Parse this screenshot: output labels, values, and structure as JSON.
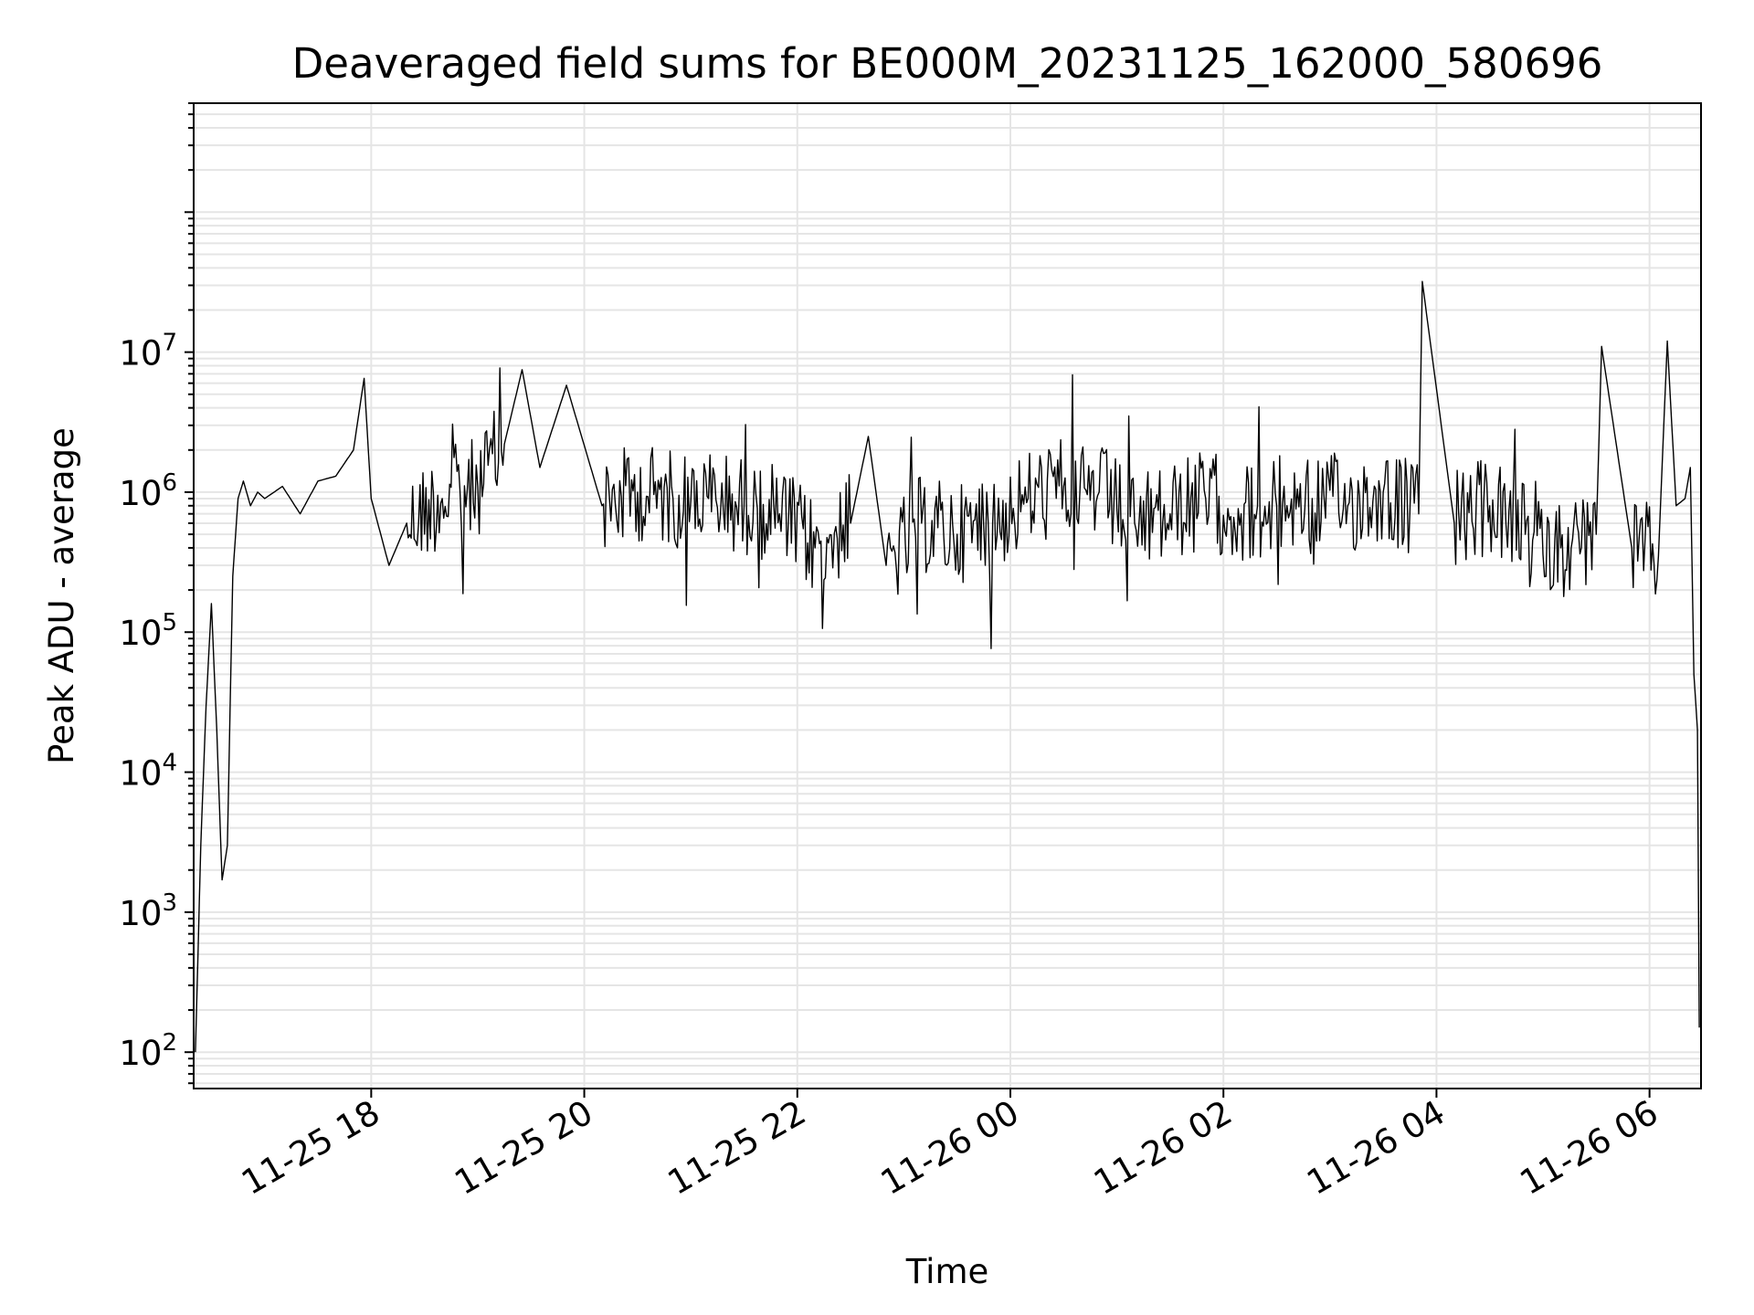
{
  "chart_data": {
    "type": "line",
    "title": "Deaveraged field sums for BE000M_20231125_162000_580696",
    "xlabel": "Time",
    "ylabel": "Peak ADU - average",
    "y_scale": "log",
    "ylim": [
      55,
      600000000
    ],
    "xlim": [
      "2023-11-25 16:20",
      "2023-11-26 06:29"
    ],
    "x_tick_labels": [
      "11-25 18",
      "11-25 20",
      "11-25 22",
      "11-26 00",
      "11-26 02",
      "11-26 04",
      "11-26 06"
    ],
    "x_tick_times": [
      "2023-11-25 18:00",
      "2023-11-25 20:00",
      "2023-11-25 22:00",
      "2023-11-26 00:00",
      "2023-11-26 02:00",
      "2023-11-26 04:00",
      "2023-11-26 06:00"
    ],
    "y_ticks": [
      {
        "value": 100,
        "base": "10",
        "exp": "2"
      },
      {
        "value": 1000,
        "base": "10",
        "exp": "3"
      },
      {
        "value": 10000,
        "base": "10",
        "exp": "4"
      },
      {
        "value": 100000,
        "base": "10",
        "exp": "5"
      },
      {
        "value": 1000000,
        "base": "10",
        "exp": "6"
      },
      {
        "value": 10000000,
        "base": "10",
        "exp": "7"
      }
    ],
    "grid": true,
    "legend": "none",
    "line_color": "#000000",
    "grid_color": "#e5e5e5",
    "series": [
      {
        "x": [
          "2023-11-25 16:21",
          "2023-11-25 16:24",
          "2023-11-25 16:27",
          "2023-11-25 16:30",
          "2023-11-25 16:33",
          "2023-11-25 16:36",
          "2023-11-25 16:39",
          "2023-11-25 16:42",
          "2023-11-25 16:45",
          "2023-11-25 16:48",
          "2023-11-25 16:52",
          "2023-11-25 16:56",
          "2023-11-25 17:00",
          "2023-11-25 17:10",
          "2023-11-25 17:20",
          "2023-11-25 17:30",
          "2023-11-25 17:40",
          "2023-11-25 17:50",
          "2023-11-25 17:56",
          "2023-11-25 18:00",
          "2023-11-25 18:10",
          "2023-11-25 18:20",
          "2023-11-25 18:40",
          "2023-11-25 19:00",
          "2023-11-25 19:15",
          "2023-11-25 19:25",
          "2023-11-25 19:35",
          "2023-11-25 19:50",
          "2023-11-25 20:10",
          "2023-11-25 20:30",
          "2023-11-25 20:50",
          "2023-11-25 21:10",
          "2023-11-25 21:30",
          "2023-11-25 21:50",
          "2023-11-25 22:10",
          "2023-11-25 22:30",
          "2023-11-25 22:40",
          "2023-11-25 22:50",
          "2023-11-25 23:10",
          "2023-11-25 23:30",
          "2023-11-25 23:50",
          "2023-11-26 00:10",
          "2023-11-26 00:30",
          "2023-11-26 00:50",
          "2023-11-26 01:10",
          "2023-11-26 01:30",
          "2023-11-26 01:50",
          "2023-11-26 02:10",
          "2023-11-26 02:30",
          "2023-11-26 02:50",
          "2023-11-26 03:10",
          "2023-11-26 03:30",
          "2023-11-26 03:50",
          "2023-11-26 03:52",
          "2023-11-26 04:10",
          "2023-11-26 04:30",
          "2023-11-26 04:50",
          "2023-11-26 05:10",
          "2023-11-26 05:30",
          "2023-11-26 05:33",
          "2023-11-26 05:50",
          "2023-11-26 06:05",
          "2023-11-26 06:10",
          "2023-11-26 06:15",
          "2023-11-26 06:20",
          "2023-11-26 06:23",
          "2023-11-26 06:25",
          "2023-11-26 06:27",
          "2023-11-26 06:28"
        ],
        "y": [
          100,
          3000,
          30000,
          160000,
          20000,
          1700,
          3000,
          250000,
          900000,
          1200000,
          800000,
          1000000,
          900000,
          1100000,
          700000,
          1200000,
          1300000,
          2000000,
          6500000,
          900000,
          300000,
          600000,
          900000,
          1100000,
          2200000,
          7500000,
          1500000,
          5800000,
          800000,
          1000000,
          900000,
          900000,
          800000,
          700000,
          400000,
          600000,
          2500000,
          300000,
          600000,
          500000,
          600000,
          900000,
          1100000,
          1000000,
          600000,
          700000,
          900000,
          700000,
          800000,
          900000,
          800000,
          1000000,
          700000,
          32000000,
          600000,
          800000,
          500000,
          400000,
          500000,
          11000000,
          400000,
          350000,
          12000000,
          800000,
          900000,
          1500000,
          50000,
          20000,
          150
        ]
      }
    ]
  }
}
